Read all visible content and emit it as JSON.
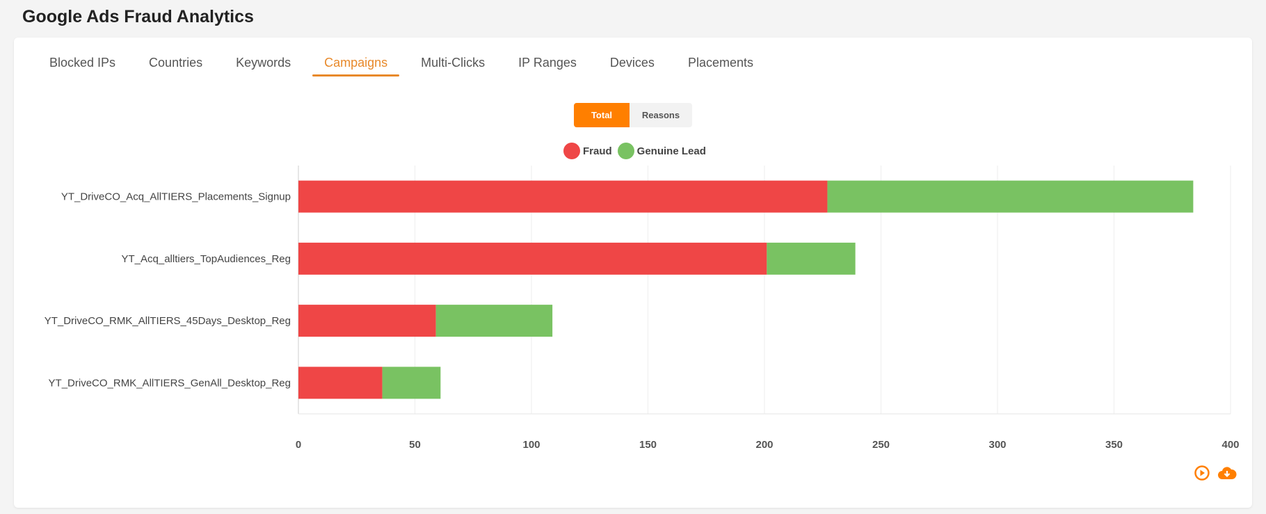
{
  "header": {
    "title": "Google Ads Fraud Analytics"
  },
  "tabs": [
    {
      "label": "Blocked IPs",
      "active": false
    },
    {
      "label": "Countries",
      "active": false
    },
    {
      "label": "Keywords",
      "active": false
    },
    {
      "label": "Campaigns",
      "active": true
    },
    {
      "label": "Multi-Clicks",
      "active": false
    },
    {
      "label": "IP Ranges",
      "active": false
    },
    {
      "label": "Devices",
      "active": false
    },
    {
      "label": "Placements",
      "active": false
    }
  ],
  "toggle": {
    "total": "Total",
    "reasons": "Reasons",
    "selected": "Total"
  },
  "colors": {
    "accent": "#ff7f00",
    "fraud": "#ef4646",
    "genuine": "#79c262"
  },
  "icons": {
    "play": "play-circle-icon",
    "download": "cloud-download-icon"
  },
  "chart_data": {
    "type": "bar",
    "orientation": "horizontal",
    "stacked": true,
    "categories": [
      "YT_DriveCO_Acq_AllTIERS_Placements_Signup",
      "YT_Acq_alltiers_TopAudiences_Reg",
      "YT_DriveCO_RMK_AllTIERS_45Days_Desktop_Reg",
      "YT_DriveCO_RMK_AllTIERS_GenAll_Desktop_Reg"
    ],
    "series": [
      {
        "name": "Fraud",
        "color": "#ef4646",
        "values": [
          227,
          201,
          59,
          36
        ]
      },
      {
        "name": "Genuine Lead",
        "color": "#79c262",
        "values": [
          157,
          38,
          50,
          25
        ]
      }
    ],
    "xlim": [
      0,
      400
    ],
    "xticks": [
      "0",
      "50",
      "100",
      "150",
      "200",
      "250",
      "300",
      "350",
      "400"
    ],
    "grid": true,
    "legend": "top-center"
  }
}
